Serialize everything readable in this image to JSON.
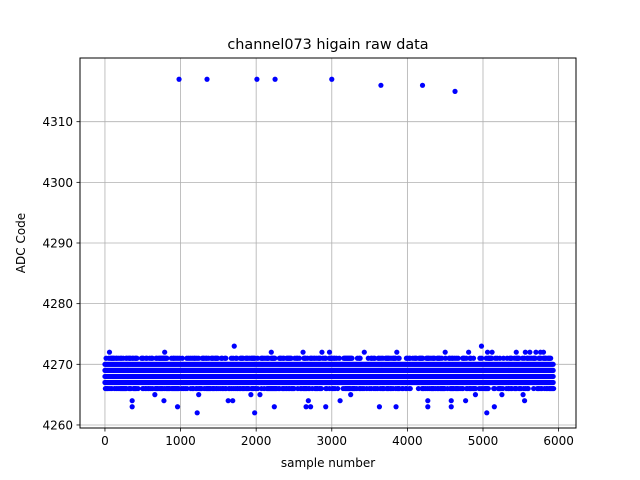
{
  "chart_data": {
    "type": "scatter",
    "title": "channel073 higain raw data",
    "xlabel": "sample number",
    "ylabel": "ADC Code",
    "xlim": [
      -330,
      6230
    ],
    "ylim": [
      4259.5,
      4320.5
    ],
    "xticks": [
      0,
      1000,
      2000,
      3000,
      4000,
      5000,
      6000
    ],
    "yticks": [
      4260,
      4270,
      4280,
      4290,
      4300,
      4310
    ],
    "grid": true,
    "marker_color": "#0000ff",
    "baseline": {
      "x_range": [
        0,
        5930
      ],
      "value_min": 4266,
      "value_max": 4271,
      "dense_band": [
        4267,
        4270
      ]
    },
    "points": [
      [
        980,
        4317
      ],
      [
        1350,
        4317
      ],
      [
        2010,
        4317
      ],
      [
        2250,
        4317
      ],
      [
        3000,
        4317
      ],
      [
        3650,
        4316
      ],
      [
        4200,
        4316
      ],
      [
        4630,
        4315
      ],
      [
        1710,
        4273
      ],
      [
        4980,
        4273
      ],
      [
        60,
        4272
      ],
      [
        790,
        4272
      ],
      [
        2200,
        4272
      ],
      [
        2870,
        4272
      ],
      [
        2970,
        4272
      ],
      [
        3430,
        4272
      ],
      [
        4810,
        4272
      ],
      [
        5060,
        4272
      ],
      [
        5120,
        4272
      ],
      [
        5440,
        4272
      ],
      [
        5560,
        4272
      ],
      [
        5620,
        4272
      ],
      [
        5700,
        4272
      ],
      [
        5760,
        4272
      ],
      [
        2620,
        4272
      ],
      [
        3860,
        4272
      ],
      [
        4500,
        4272
      ],
      [
        5800,
        4272
      ],
      [
        360,
        4264
      ],
      [
        780,
        4264
      ],
      [
        1630,
        4264
      ],
      [
        1690,
        4264
      ],
      [
        2690,
        4264
      ],
      [
        3110,
        4264
      ],
      [
        4270,
        4264
      ],
      [
        4580,
        4264
      ],
      [
        4770,
        4264
      ],
      [
        5550,
        4264
      ],
      [
        360,
        4263
      ],
      [
        960,
        4263
      ],
      [
        2240,
        4263
      ],
      [
        2660,
        4263
      ],
      [
        2720,
        4263
      ],
      [
        2920,
        4263
      ],
      [
        3630,
        4263
      ],
      [
        3850,
        4263
      ],
      [
        4270,
        4263
      ],
      [
        4580,
        4263
      ],
      [
        5150,
        4263
      ],
      [
        1220,
        4262
      ],
      [
        1980,
        4262
      ],
      [
        5050,
        4262
      ],
      [
        1240,
        4265
      ],
      [
        1930,
        4265
      ],
      [
        2050,
        4265
      ],
      [
        3250,
        4265
      ],
      [
        4900,
        4265
      ],
      [
        5250,
        4265
      ],
      [
        5530,
        4265
      ],
      [
        660,
        4265
      ]
    ]
  }
}
